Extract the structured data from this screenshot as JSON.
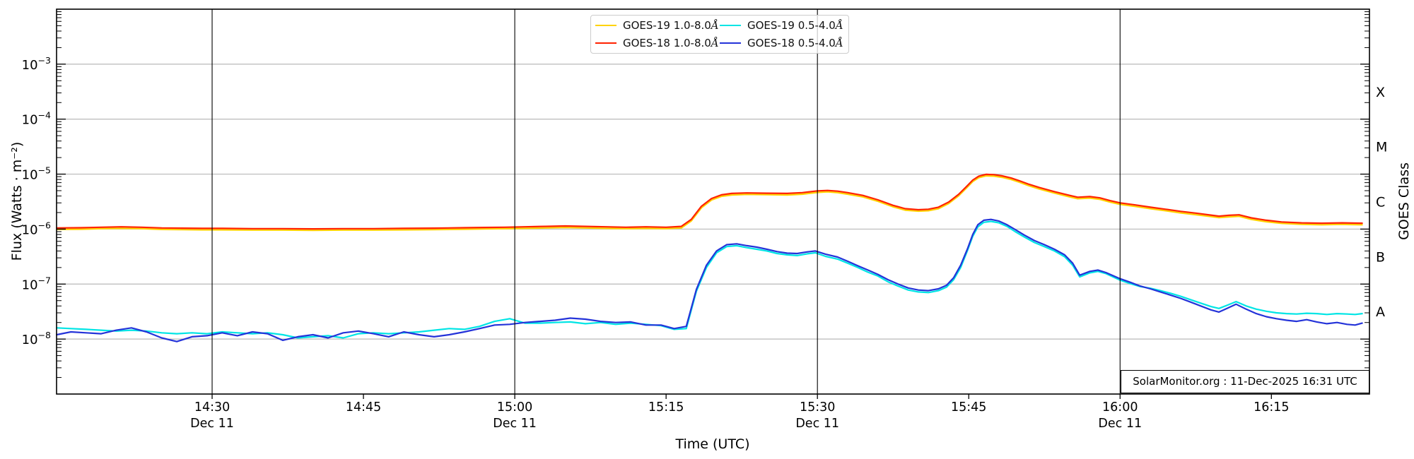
{
  "page": {
    "background": "#ffffff"
  },
  "chart_data": {
    "type": "line",
    "title": "",
    "xlabel": "Time (UTC)",
    "ylabel": "Flux (Watts · m⁻²)",
    "ylabel_right": "GOES Class",
    "annotation": "SolarMonitor.org : 11-Dec-2025 16:31 UTC",
    "x_axis": {
      "unit": "minutes after 14:00 UTC, 11-Dec-2025",
      "domain": [
        14.58,
        144.72
      ],
      "ticks": [
        {
          "label": "14:30",
          "t": 30,
          "date_label": "Dec 11",
          "vline": true
        },
        {
          "label": "14:45",
          "t": 45,
          "date_label": "",
          "vline": false
        },
        {
          "label": "15:00",
          "t": 60,
          "date_label": "Dec 11",
          "vline": true
        },
        {
          "label": "15:15",
          "t": 75,
          "date_label": "",
          "vline": false
        },
        {
          "label": "15:30",
          "t": 90,
          "date_label": "Dec 11",
          "vline": true
        },
        {
          "label": "15:45",
          "t": 105,
          "date_label": "",
          "vline": false
        },
        {
          "label": "16:00",
          "t": 120,
          "date_label": "Dec 11",
          "vline": true
        },
        {
          "label": "16:15",
          "t": 135,
          "date_label": "",
          "vline": false
        }
      ]
    },
    "y_axis": {
      "scale": "log",
      "domain": [
        1e-09,
        0.01
      ],
      "tick_exponents": [
        -3,
        -4,
        -5,
        -6,
        -7,
        -8
      ],
      "gridline_exponents": [
        -3,
        -4,
        -5,
        -6,
        -7,
        -8
      ]
    },
    "goes_classes": [
      {
        "label": "X",
        "center_exponent": -3.5
      },
      {
        "label": "M",
        "center_exponent": -4.5
      },
      {
        "label": "C",
        "center_exponent": -5.5
      },
      {
        "label": "B",
        "center_exponent": -6.5
      },
      {
        "label": "A",
        "center_exponent": -7.5
      }
    ],
    "legend": {
      "entries": [
        {
          "label": "GOES-19 1.0-8.0",
          "angstrom": "Å",
          "color": "#ffd300"
        },
        {
          "label": "GOES-18 1.0-8.0",
          "angstrom": "Å",
          "color": "#ff2200"
        },
        {
          "label": "GOES-19 0.5-4.0",
          "angstrom": "Å",
          "color": "#00e5e5"
        },
        {
          "label": "GOES-18 0.5-4.0",
          "angstrom": "Å",
          "color": "#2433d9"
        }
      ]
    },
    "colors": {
      "grid": "#b9b9b9",
      "axis": "#000000",
      "vline": "#000000",
      "text": "#000000"
    },
    "series": [
      {
        "name": "GOES-19 1.0-8.0Å",
        "color": "#ffd300",
        "width": 2.2,
        "t": [
          14.6,
          17,
          19,
          21,
          23,
          25,
          27,
          29,
          31,
          34,
          37,
          40,
          43,
          46,
          49,
          52,
          55,
          57,
          59,
          61,
          63,
          65,
          67,
          69,
          71,
          73,
          75,
          76.5,
          77.5,
          78.5,
          79.5,
          80.5,
          81.5,
          83,
          85,
          87,
          88.5,
          90,
          91,
          92,
          93,
          94.5,
          96,
          97.5,
          98.7,
          100,
          101,
          102,
          103,
          104,
          104.8,
          105.4,
          106,
          106.7,
          107.5,
          108.3,
          109.2,
          110,
          111,
          112,
          113.5,
          115,
          115.8,
          117,
          118,
          119,
          120,
          121.5,
          123,
          124.5,
          126,
          127.5,
          129,
          129.8,
          130.8,
          131.8,
          133,
          134.5,
          136,
          138,
          140,
          142,
          144
        ],
        "flux": [
          9.87e-07,
          9.96e-07,
          1.02e-06,
          1.03e-06,
          1.02e-06,
          9.87e-07,
          9.78e-07,
          9.68e-07,
          9.68e-07,
          9.59e-07,
          9.59e-07,
          9.49e-07,
          9.59e-07,
          9.59e-07,
          9.68e-07,
          9.78e-07,
          9.96e-07,
          1.01e-06,
          1.02e-06,
          1.03e-06,
          1.05e-06,
          1.07e-06,
          1.05e-06,
          1.03e-06,
          1.02e-06,
          1.03e-06,
          1.02e-06,
          1.05e-06,
          1.41e-06,
          2.44e-06,
          3.38e-06,
          3.95e-06,
          4.18e-06,
          4.28e-06,
          4.23e-06,
          4.18e-06,
          4.32e-06,
          4.65e-06,
          4.75e-06,
          4.61e-06,
          4.32e-06,
          3.85e-06,
          3.2e-06,
          2.54e-06,
          2.21e-06,
          2.12e-06,
          2.16e-06,
          2.35e-06,
          2.91e-06,
          4.04e-06,
          5.64e-06,
          7.33e-06,
          8.65e-06,
          9.31e-06,
          9.21e-06,
          8.74e-06,
          7.99e-06,
          7.14e-06,
          6.11e-06,
          5.36e-06,
          4.51e-06,
          3.85e-06,
          3.57e-06,
          3.67e-06,
          3.48e-06,
          3.1e-06,
          2.82e-06,
          2.59e-06,
          2.35e-06,
          2.16e-06,
          1.97e-06,
          1.83e-06,
          1.69e-06,
          1.62e-06,
          1.67e-06,
          1.71e-06,
          1.5e-06,
          1.36e-06,
          1.27e-06,
          1.22e-06,
          1.2e-06,
          1.22e-06,
          1.2e-06
        ]
      },
      {
        "name": "GOES-18 1.0-8.0Å",
        "color": "#ff2200",
        "width": 2.2,
        "t": [
          14.6,
          17,
          19,
          21,
          23,
          25,
          27,
          29,
          31,
          34,
          37,
          40,
          43,
          46,
          49,
          52,
          55,
          57,
          59,
          61,
          63,
          65,
          67,
          69,
          71,
          73,
          75,
          76.5,
          77.5,
          78.5,
          79.5,
          80.5,
          81.5,
          83,
          85,
          87,
          88.5,
          90,
          91,
          92,
          93,
          94.5,
          96,
          97.5,
          98.7,
          100,
          101,
          102,
          103,
          104,
          104.8,
          105.4,
          106,
          106.7,
          107.5,
          108.3,
          109.2,
          110,
          111,
          112,
          113.5,
          115,
          115.8,
          117,
          118,
          119,
          120,
          121.5,
          123,
          124.5,
          126,
          127.5,
          129,
          129.8,
          130.8,
          131.8,
          133,
          134.5,
          136,
          138,
          140,
          142,
          144
        ],
        "flux": [
          1.05e-06,
          1.06e-06,
          1.08e-06,
          1.1e-06,
          1.08e-06,
          1.05e-06,
          1.04e-06,
          1.03e-06,
          1.03e-06,
          1.02e-06,
          1.02e-06,
          1.01e-06,
          1.02e-06,
          1.02e-06,
          1.03e-06,
          1.04e-06,
          1.06e-06,
          1.07e-06,
          1.08e-06,
          1.1e-06,
          1.12e-06,
          1.14e-06,
          1.12e-06,
          1.1e-06,
          1.08e-06,
          1.1e-06,
          1.08e-06,
          1.12e-06,
          1.5e-06,
          2.6e-06,
          3.6e-06,
          4.2e-06,
          4.45e-06,
          4.55e-06,
          4.5e-06,
          4.45e-06,
          4.6e-06,
          4.95e-06,
          5.05e-06,
          4.9e-06,
          4.6e-06,
          4.1e-06,
          3.4e-06,
          2.7e-06,
          2.35e-06,
          2.25e-06,
          2.3e-06,
          2.5e-06,
          3.1e-06,
          4.3e-06,
          6e-06,
          7.8e-06,
          9.2e-06,
          9.9e-06,
          9.8e-06,
          9.3e-06,
          8.5e-06,
          7.6e-06,
          6.5e-06,
          5.7e-06,
          4.8e-06,
          4.1e-06,
          3.8e-06,
          3.9e-06,
          3.7e-06,
          3.3e-06,
          3e-06,
          2.75e-06,
          2.5e-06,
          2.3e-06,
          2.1e-06,
          1.95e-06,
          1.8e-06,
          1.72e-06,
          1.78e-06,
          1.82e-06,
          1.6e-06,
          1.45e-06,
          1.35e-06,
          1.3e-06,
          1.28e-06,
          1.3e-06,
          1.28e-06
        ]
      },
      {
        "name": "GOES-19 0.5-4.0Å",
        "color": "#00e5e5",
        "width": 2.2,
        "t": [
          14.6,
          16,
          17.5,
          19,
          20.5,
          22,
          23.5,
          25,
          26.5,
          28,
          29.5,
          31,
          32.5,
          34,
          35.5,
          37,
          38.5,
          40,
          41.5,
          43,
          44.5,
          46,
          47.5,
          49,
          50.5,
          52,
          53.5,
          55,
          56.5,
          58,
          59.5,
          61,
          62.5,
          64,
          65.5,
          67,
          68.5,
          70,
          71.5,
          73,
          74.5,
          75.8,
          77,
          78,
          79,
          80,
          81,
          82,
          83,
          84,
          85,
          86,
          87,
          88,
          89,
          89.8,
          90.8,
          92,
          93,
          94,
          95,
          96,
          97,
          98,
          99,
          100,
          101,
          102,
          102.8,
          103.5,
          104.2,
          104.9,
          105.4,
          105.9,
          106.5,
          107.2,
          108,
          108.8,
          109.6,
          110.5,
          111.5,
          112.5,
          113.5,
          114.5,
          115.3,
          116,
          117,
          117.8,
          118.6,
          120,
          121,
          122,
          123,
          124,
          125,
          126,
          127,
          128,
          129,
          129.8,
          130.6,
          131.5,
          132.5,
          133.5,
          134.5,
          135.5,
          136.5,
          137.5,
          138.5,
          139.5,
          140.5,
          141.5,
          142.5,
          143.3,
          144
        ],
        "flux": [
          1.6e-08,
          1.55e-08,
          1.5e-08,
          1.45e-08,
          1.4e-08,
          1.45e-08,
          1.4e-08,
          1.3e-08,
          1.25e-08,
          1.3e-08,
          1.25e-08,
          1.35e-08,
          1.3e-08,
          1.25e-08,
          1.3e-08,
          1.2e-08,
          1.05e-08,
          1.1e-08,
          1.15e-08,
          1.05e-08,
          1.25e-08,
          1.3e-08,
          1.25e-08,
          1.3e-08,
          1.35e-08,
          1.45e-08,
          1.55e-08,
          1.5e-08,
          1.7e-08,
          2.1e-08,
          2.35e-08,
          1.95e-08,
          1.95e-08,
          2e-08,
          2.05e-08,
          1.9e-08,
          2e-08,
          1.85e-08,
          1.95e-08,
          1.85e-08,
          1.75e-08,
          1.5e-08,
          1.55e-08,
          7.4e-08,
          2e-07,
          3.7e-07,
          4.8e-07,
          5e-07,
          4.6e-07,
          4.3e-07,
          4e-07,
          3.6e-07,
          3.4e-07,
          3.3e-07,
          3.55e-07,
          3.7e-07,
          3.2e-07,
          2.85e-07,
          2.4e-07,
          2e-07,
          1.65e-07,
          1.4e-07,
          1.1e-07,
          9.2e-08,
          7.8e-08,
          7.2e-08,
          7e-08,
          7.6e-08,
          8.8e-08,
          1.2e-07,
          2e-07,
          4.2e-07,
          7.4e-07,
          1.1e-06,
          1.33e-06,
          1.38e-06,
          1.3e-06,
          1.12e-06,
          9e-07,
          7.2e-07,
          5.7e-07,
          4.8e-07,
          4e-07,
          3.15e-07,
          2.2e-07,
          1.35e-07,
          1.6e-07,
          1.7e-07,
          1.55e-07,
          1.18e-07,
          1.02e-07,
          9e-08,
          8.4e-08,
          7.6e-08,
          6.8e-08,
          6e-08,
          5.2e-08,
          4.5e-08,
          3.9e-08,
          3.6e-08,
          4.1e-08,
          4.8e-08,
          4e-08,
          3.5e-08,
          3.2e-08,
          3e-08,
          2.9e-08,
          2.85e-08,
          2.95e-08,
          2.9e-08,
          2.8e-08,
          2.9e-08,
          2.85e-08,
          2.8e-08,
          2.9e-08
        ]
      },
      {
        "name": "GOES-18 0.5-4.0Å",
        "color": "#2433d9",
        "width": 2.2,
        "t": [
          14.6,
          16,
          17.5,
          19,
          20.5,
          22,
          23.5,
          25,
          26.5,
          28,
          29.5,
          31,
          32.5,
          34,
          35.5,
          37,
          38.5,
          40,
          41.5,
          43,
          44.5,
          46,
          47.5,
          49,
          50.5,
          52,
          53.5,
          55,
          56.5,
          58,
          59.5,
          61,
          62.5,
          64,
          65.5,
          67,
          68.5,
          70,
          71.5,
          73,
          74.5,
          75.8,
          77,
          78,
          79,
          80,
          81,
          82,
          83,
          84,
          85,
          86,
          87,
          88,
          89,
          89.8,
          90.8,
          92,
          93,
          94,
          95,
          96,
          97,
          98,
          99,
          100,
          101,
          102,
          102.8,
          103.5,
          104.2,
          104.9,
          105.4,
          105.9,
          106.5,
          107.2,
          108,
          108.8,
          109.6,
          110.5,
          111.5,
          112.5,
          113.5,
          114.5,
          115.3,
          116,
          117,
          117.8,
          118.6,
          120,
          121,
          122,
          123,
          124,
          125,
          126,
          127,
          128,
          129,
          129.8,
          130.6,
          131.5,
          132.5,
          133.5,
          134.5,
          135.5,
          136.5,
          137.5,
          138.5,
          139.5,
          140.5,
          141.5,
          142.5,
          143.3,
          144
        ],
        "flux": [
          1.2e-08,
          1.35e-08,
          1.3e-08,
          1.25e-08,
          1.45e-08,
          1.6e-08,
          1.35e-08,
          1.05e-08,
          9e-09,
          1.1e-08,
          1.15e-08,
          1.3e-08,
          1.15e-08,
          1.35e-08,
          1.25e-08,
          9.5e-09,
          1.1e-08,
          1.2e-08,
          1.05e-08,
          1.3e-08,
          1.4e-08,
          1.25e-08,
          1.1e-08,
          1.35e-08,
          1.2e-08,
          1.1e-08,
          1.2e-08,
          1.35e-08,
          1.55e-08,
          1.8e-08,
          1.85e-08,
          2e-08,
          2.1e-08,
          2.2e-08,
          2.4e-08,
          2.3e-08,
          2.1e-08,
          2e-08,
          2.05e-08,
          1.8e-08,
          1.8e-08,
          1.55e-08,
          1.7e-08,
          8e-08,
          2.2e-07,
          4e-07,
          5.2e-07,
          5.4e-07,
          5e-07,
          4.7e-07,
          4.3e-07,
          3.9e-07,
          3.65e-07,
          3.6e-07,
          3.85e-07,
          4e-07,
          3.5e-07,
          3.1e-07,
          2.6e-07,
          2.15e-07,
          1.8e-07,
          1.5e-07,
          1.2e-07,
          1e-07,
          8.5e-08,
          7.8e-08,
          7.6e-08,
          8.2e-08,
          9.5e-08,
          1.3e-07,
          2.2e-07,
          4.5e-07,
          8e-07,
          1.2e-06,
          1.45e-06,
          1.5e-06,
          1.4e-06,
          1.2e-06,
          9.8e-07,
          7.8e-07,
          6.2e-07,
          5.2e-07,
          4.3e-07,
          3.4e-07,
          2.4e-07,
          1.45e-07,
          1.7e-07,
          1.8e-07,
          1.62e-07,
          1.25e-07,
          1.08e-07,
          9.2e-08,
          8.2e-08,
          7.2e-08,
          6.3e-08,
          5.5e-08,
          4.7e-08,
          4e-08,
          3.4e-08,
          3.1e-08,
          3.6e-08,
          4.3e-08,
          3.5e-08,
          2.9e-08,
          2.55e-08,
          2.35e-08,
          2.2e-08,
          2.1e-08,
          2.25e-08,
          2.05e-08,
          1.9e-08,
          2e-08,
          1.85e-08,
          1.8e-08,
          1.95e-08
        ]
      }
    ]
  }
}
